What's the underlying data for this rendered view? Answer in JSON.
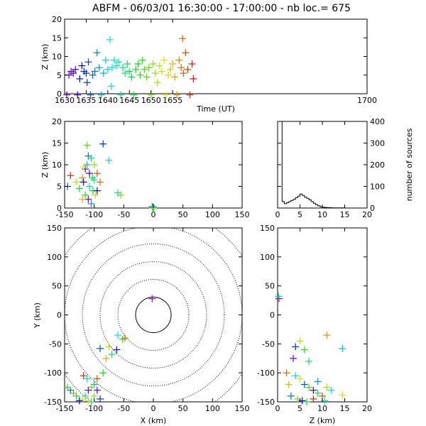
{
  "title": "ABFM - 06/03/01 16:30:00 - 17:00:00 - nb loc.=     675",
  "chart_data": [
    {
      "id": "time_height",
      "type": "scatter",
      "xlabel": "Time (UT)",
      "ylabel": "Z (km)",
      "xlim": [
        1630,
        1700
      ],
      "ylim": [
        0,
        20
      ],
      "xticks": [
        "1630",
        "1635",
        "1640",
        "1645",
        "1650",
        "1655",
        "1700"
      ],
      "yticks": [
        "0",
        "5",
        "10",
        "15",
        "20"
      ],
      "color_encoding": "time (purple → blue → cyan → green → yellow → orange → red)",
      "points": [
        [
          1630.5,
          -0.3
        ],
        [
          1631,
          5
        ],
        [
          1631.5,
          6
        ],
        [
          1632,
          5.5
        ],
        [
          1632.5,
          6.5
        ],
        [
          1633,
          -0.3
        ],
        [
          1633.5,
          4
        ],
        [
          1634,
          7.5
        ],
        [
          1634.5,
          6
        ],
        [
          1635,
          5.5
        ],
        [
          1635.2,
          3
        ],
        [
          1635.5,
          8.5
        ],
        [
          1636,
          -0.3
        ],
        [
          1636.5,
          5
        ],
        [
          1637,
          6
        ],
        [
          1637.5,
          11
        ],
        [
          1638,
          7
        ],
        [
          1638.5,
          -0.3
        ],
        [
          1639,
          5.5
        ],
        [
          1639.5,
          9
        ],
        [
          1640,
          6.5
        ],
        [
          1640.5,
          14.5
        ],
        [
          1640.8,
          2
        ],
        [
          1641,
          7
        ],
        [
          1641.5,
          9
        ],
        [
          1642,
          7.5
        ],
        [
          1642.5,
          8.5
        ],
        [
          1643,
          -0.3
        ],
        [
          1643.5,
          7
        ],
        [
          1644,
          5.5
        ],
        [
          1644.5,
          8
        ],
        [
          1645,
          6
        ],
        [
          1645.5,
          4.5
        ],
        [
          1646,
          -0.3
        ],
        [
          1646.5,
          6.5
        ],
        [
          1647,
          8
        ],
        [
          1647.5,
          5
        ],
        [
          1648,
          9
        ],
        [
          1648.5,
          6.5
        ],
        [
          1649,
          4.5
        ],
        [
          1649.5,
          7
        ],
        [
          1650,
          -0.3
        ],
        [
          1650.5,
          8
        ],
        [
          1651,
          5.5
        ],
        [
          1651.5,
          3
        ],
        [
          1652,
          7.5
        ],
        [
          1652.5,
          6
        ],
        [
          1653,
          9
        ],
        [
          1653.5,
          -0.3
        ],
        [
          1654,
          5
        ],
        [
          1654.5,
          6.5
        ],
        [
          1655,
          8
        ],
        [
          1655.5,
          4.5
        ],
        [
          1656,
          -0.3
        ],
        [
          1656.5,
          9
        ],
        [
          1657,
          7
        ],
        [
          1657.3,
          14.8
        ],
        [
          1657.5,
          5.5
        ],
        [
          1658,
          11
        ],
        [
          1658.5,
          6.5
        ],
        [
          1659,
          -0.3
        ],
        [
          1659.5,
          8
        ],
        [
          1659.8,
          4
        ]
      ]
    },
    {
      "id": "xz",
      "type": "scatter",
      "xlabel": "",
      "ylabel": "Z (km)",
      "xlim": [
        -150,
        150
      ],
      "ylim": [
        0,
        20
      ],
      "xticks": [
        "-150",
        "-100",
        "-50",
        "0",
        "50",
        "100",
        "150"
      ],
      "yticks": [
        "0",
        "5",
        "10",
        "15",
        "20"
      ],
      "points": [
        [
          -115,
          9
        ],
        [
          -110,
          12
        ],
        [
          -105,
          11.5
        ],
        [
          -100,
          10
        ],
        [
          -95,
          8
        ],
        [
          -85,
          14.8
        ],
        [
          -75,
          11
        ],
        [
          -112,
          14.5
        ],
        [
          -120,
          7
        ],
        [
          -118,
          6
        ],
        [
          -108,
          5
        ],
        [
          -102,
          4
        ],
        [
          -98,
          3
        ],
        [
          -110,
          2
        ],
        [
          -105,
          1
        ],
        [
          -125,
          4.5
        ],
        [
          -130,
          6
        ],
        [
          -140,
          7.5
        ],
        [
          -145,
          5
        ],
        [
          -60,
          3.5
        ],
        [
          -55,
          3
        ],
        [
          -90,
          6
        ],
        [
          -95,
          4
        ],
        [
          -100,
          6.5
        ],
        [
          -115,
          3
        ],
        [
          -120,
          2
        ],
        [
          -108,
          8
        ],
        [
          -112,
          10
        ],
        [
          -103,
          7
        ],
        [
          -118,
          9.5
        ],
        [
          -0.5,
          0.2
        ],
        [
          -2,
          0.3
        ],
        [
          1,
          0.1
        ],
        [
          -1,
          0
        ]
      ]
    },
    {
      "id": "altitude_histogram",
      "type": "line",
      "xlabel": "",
      "ylabel": "number of sources",
      "xlim": [
        0,
        20
      ],
      "ylim": [
        0,
        400
      ],
      "xticks": [
        "0",
        "5",
        "10",
        "15",
        "20"
      ],
      "yticks": [
        "0",
        "100",
        "200",
        "300",
        "400"
      ],
      "x": [
        0,
        0.5,
        1,
        1.5,
        2,
        2.5,
        3,
        3.5,
        4,
        4.5,
        5,
        5.5,
        6,
        6.5,
        7,
        7.5,
        8,
        8.5,
        9,
        9.5,
        10,
        10.5,
        11,
        12,
        13,
        14,
        15,
        20
      ],
      "values": [
        400,
        400,
        30,
        20,
        25,
        30,
        35,
        40,
        48,
        55,
        65,
        58,
        50,
        45,
        38,
        30,
        22,
        15,
        10,
        6,
        4,
        3,
        2,
        1,
        1,
        1,
        0,
        0
      ]
    },
    {
      "id": "xy_plan",
      "type": "scatter",
      "xlabel": "X (km)",
      "ylabel": "Y (km)",
      "xlim": [
        -150,
        150
      ],
      "ylim": [
        -150,
        150
      ],
      "xticks": [
        "-150",
        "-100",
        "-50",
        "0",
        "50",
        "100",
        "150"
      ],
      "yticks": [
        "-150",
        "-100",
        "-50",
        "0",
        "50",
        "100",
        "150"
      ],
      "range_rings_km": [
        30,
        60,
        90,
        120,
        150,
        180
      ],
      "points": [
        [
          -2,
          28
        ],
        [
          -60,
          -35
        ],
        [
          -75,
          -55
        ],
        [
          -62,
          -60
        ],
        [
          -70,
          -68
        ],
        [
          -80,
          -75
        ],
        [
          -90,
          -58
        ],
        [
          -85,
          -100
        ],
        [
          -95,
          -110
        ],
        [
          -100,
          -120
        ],
        [
          -105,
          -125
        ],
        [
          -110,
          -130
        ],
        [
          -115,
          -140
        ],
        [
          -120,
          -145
        ],
        [
          -125,
          -148
        ],
        [
          -130,
          -140
        ],
        [
          -135,
          -135
        ],
        [
          -140,
          -130
        ],
        [
          -145,
          -125
        ],
        [
          -118,
          -105
        ],
        [
          -112,
          -110
        ],
        [
          -100,
          -140
        ],
        [
          -95,
          -130
        ],
        [
          -105,
          -150
        ],
        [
          -110,
          -148
        ],
        [
          -90,
          -145
        ],
        [
          -52,
          -42
        ],
        [
          -48,
          -40
        ]
      ]
    },
    {
      "id": "zy",
      "type": "scatter",
      "xlabel": "Z (km)",
      "ylabel": "",
      "xlim": [
        0,
        20
      ],
      "ylim": [
        -150,
        150
      ],
      "xticks": [
        "0",
        "5",
        "10",
        "15",
        "20"
      ],
      "yticks": [
        "-150",
        "-100",
        "-50",
        "0",
        "50",
        "100",
        "150"
      ],
      "points": [
        [
          0.3,
          28
        ],
        [
          0.2,
          32
        ],
        [
          11,
          -35
        ],
        [
          14.5,
          -58
        ],
        [
          5,
          -45
        ],
        [
          4,
          -55
        ],
        [
          6,
          -60
        ],
        [
          3.5,
          -75
        ],
        [
          7,
          -80
        ],
        [
          2,
          -100
        ],
        [
          4,
          -105
        ],
        [
          5,
          -110
        ],
        [
          6,
          -120
        ],
        [
          7,
          -125
        ],
        [
          8,
          -130
        ],
        [
          9,
          -135
        ],
        [
          10,
          -140
        ],
        [
          12,
          -130
        ],
        [
          14.5,
          -138
        ],
        [
          3,
          -140
        ],
        [
          4.5,
          -145
        ],
        [
          5.5,
          -148
        ],
        [
          6.5,
          -150
        ],
        [
          8,
          -145
        ],
        [
          10.5,
          -148
        ],
        [
          2.5,
          -120
        ],
        [
          9,
          -115
        ],
        [
          11,
          -125
        ]
      ]
    }
  ]
}
